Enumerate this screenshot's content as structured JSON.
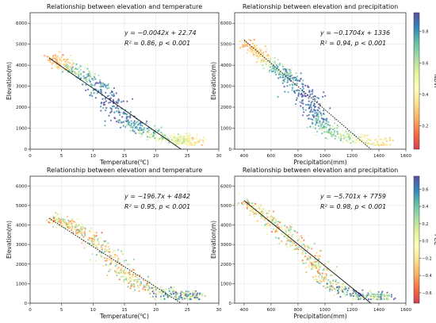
{
  "chart_data": [
    {
      "type": "scatter",
      "title": "Relationship between elevation and temperature",
      "xlabel": "Temperature(℃)",
      "ylabel": "Elevation(m)",
      "xlim": [
        0,
        30
      ],
      "ylim": [
        0,
        6500
      ],
      "xticks": [
        "0",
        "5",
        "10",
        "15",
        "20",
        "25",
        "30"
      ],
      "yticks": [
        "0",
        "1000",
        "2000",
        "3000",
        "4000",
        "5000",
        "6000"
      ],
      "equation": "y = −0.0042x + 22.74",
      "stats": "R² = 0.86, p < 0.001",
      "colorby": "NDVI",
      "grid": true,
      "fit_line": {
        "x": [
          3,
          24
        ],
        "y": [
          4350,
          0
        ],
        "style": "solid"
      },
      "cloud": [
        {
          "x": 3.5,
          "y": 4300
        },
        {
          "x": 5,
          "y": 4150
        },
        {
          "x": 7,
          "y": 3800
        },
        {
          "x": 9,
          "y": 3450
        },
        {
          "x": 11,
          "y": 2900
        },
        {
          "x": 13,
          "y": 2200
        },
        {
          "x": 15,
          "y": 1500
        },
        {
          "x": 17,
          "y": 1000
        },
        {
          "x": 20,
          "y": 650
        },
        {
          "x": 23,
          "y": 450
        },
        {
          "x": 25,
          "y": 380
        },
        {
          "x": 27,
          "y": 330
        }
      ]
    },
    {
      "type": "scatter",
      "title": "Relationship between elevation and precipitation",
      "xlabel": "Precipitation(mm)",
      "ylabel": "Elevation(m)",
      "xlim": [
        330,
        1600
      ],
      "ylim": [
        0,
        6500
      ],
      "xticks": [
        "400",
        "600",
        "800",
        "1000",
        "1200",
        "1400",
        "1600"
      ],
      "yticks": [
        "0",
        "1000",
        "2000",
        "3000",
        "4000",
        "5000",
        "6000"
      ],
      "equation": "y = −0.1704x + 1336",
      "stats": "R² = 0.94, p < 0.001",
      "colorby": "NDVI",
      "grid": true,
      "fit_line": {
        "x": [
          400,
          1340
        ],
        "y": [
          5200,
          0
        ],
        "style": "dotted"
      },
      "cloud": [
        {
          "x": 410,
          "y": 5100
        },
        {
          "x": 500,
          "y": 4600
        },
        {
          "x": 600,
          "y": 4100
        },
        {
          "x": 700,
          "y": 3600
        },
        {
          "x": 800,
          "y": 3050
        },
        {
          "x": 880,
          "y": 2400
        },
        {
          "x": 930,
          "y": 1700
        },
        {
          "x": 980,
          "y": 1100
        },
        {
          "x": 1050,
          "y": 750
        },
        {
          "x": 1200,
          "y": 500
        },
        {
          "x": 1350,
          "y": 350
        },
        {
          "x": 1480,
          "y": 300
        }
      ]
    },
    {
      "type": "scatter",
      "title": "Relationship between elevation and temperature",
      "xlabel": "Temperature(℃)",
      "ylabel": "Elevation(m)",
      "xlim": [
        0,
        30
      ],
      "ylim": [
        0,
        6500
      ],
      "xticks": [
        "0",
        "5",
        "10",
        "15",
        "20",
        "25",
        "30"
      ],
      "yticks": [
        "0",
        "1000",
        "2000",
        "3000",
        "4000",
        "5000",
        "6000"
      ],
      "equation": "y = −196.7x + 4842",
      "stats": "R² = 0.95, p < 0.001",
      "colorby": "PCC",
      "grid": true,
      "fit_line": {
        "x": [
          3,
          24
        ],
        "y": [
          4350,
          0
        ],
        "style": "dotted"
      },
      "cloud": [
        {
          "x": 3.5,
          "y": 4300
        },
        {
          "x": 5,
          "y": 4200
        },
        {
          "x": 7,
          "y": 3900
        },
        {
          "x": 9,
          "y": 3500
        },
        {
          "x": 11,
          "y": 3000
        },
        {
          "x": 13,
          "y": 2300
        },
        {
          "x": 15,
          "y": 1600
        },
        {
          "x": 17,
          "y": 1000
        },
        {
          "x": 20,
          "y": 600
        },
        {
          "x": 23,
          "y": 420
        },
        {
          "x": 25,
          "y": 360
        },
        {
          "x": 27,
          "y": 320
        }
      ]
    },
    {
      "type": "scatter",
      "title": "Relationship between elevation and precipitation",
      "xlabel": "Precipitation(mm)",
      "ylabel": "Elevation(m)",
      "xlim": [
        330,
        1600
      ],
      "ylim": [
        0,
        6500
      ],
      "xticks": [
        "400",
        "600",
        "800",
        "1000",
        "1200",
        "1400",
        "1600"
      ],
      "yticks": [
        "0",
        "1000",
        "2000",
        "3000",
        "4000",
        "5000",
        "6000"
      ],
      "equation": "y = −5.701x + 7759",
      "stats": "R² = 0.98, p < 0.001",
      "colorby": "PCC",
      "grid": true,
      "fit_line": {
        "x": [
          400,
          1340
        ],
        "y": [
          5250,
          0
        ],
        "style": "solid"
      },
      "cloud": [
        {
          "x": 410,
          "y": 5200
        },
        {
          "x": 500,
          "y": 4700
        },
        {
          "x": 600,
          "y": 4200
        },
        {
          "x": 700,
          "y": 3650
        },
        {
          "x": 800,
          "y": 3100
        },
        {
          "x": 880,
          "y": 2500
        },
        {
          "x": 940,
          "y": 1800
        },
        {
          "x": 1000,
          "y": 1200
        },
        {
          "x": 1080,
          "y": 800
        },
        {
          "x": 1200,
          "y": 500
        },
        {
          "x": 1350,
          "y": 340
        },
        {
          "x": 1480,
          "y": 290
        }
      ]
    }
  ],
  "colorbars": [
    {
      "label": "NDVI",
      "ticks": [
        "0.2",
        "0.4",
        "0.6",
        "0.8"
      ],
      "tick_values": [
        0.2,
        0.4,
        0.6,
        0.8
      ],
      "range": [
        0.05,
        0.92
      ],
      "colors": [
        "#d53e4f",
        "#f46d43",
        "#fdae61",
        "#fee08b",
        "#ffffbf",
        "#e6f598",
        "#abdda4",
        "#66c2a5",
        "#3288bd",
        "#5e4fa2"
      ]
    },
    {
      "label": "PCC",
      "ticks": [
        "−0.6",
        "−0.4",
        "−0.2",
        "0.0",
        "0.2",
        "0.4",
        "0.6"
      ],
      "tick_values": [
        -0.6,
        -0.4,
        -0.2,
        0.0,
        0.2,
        0.4,
        0.6
      ],
      "range": [
        -0.72,
        0.75
      ],
      "colors": [
        "#d53e4f",
        "#f46d43",
        "#fdae61",
        "#fee08b",
        "#ffffbf",
        "#e6f598",
        "#abdda4",
        "#66c2a5",
        "#3288bd",
        "#5e4fa2"
      ]
    }
  ]
}
